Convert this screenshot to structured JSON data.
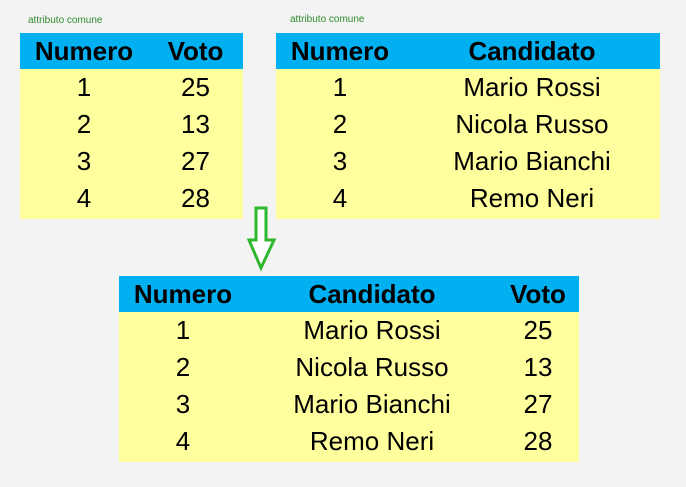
{
  "notes": {
    "left": "attributo comune",
    "right": "attributo comune"
  },
  "table_voti": {
    "headers": [
      "Numero",
      "Voto"
    ],
    "rows": [
      [
        "1",
        "25"
      ],
      [
        "2",
        "13"
      ],
      [
        "3",
        "27"
      ],
      [
        "4",
        "28"
      ]
    ]
  },
  "table_candidati": {
    "headers": [
      "Numero",
      "Candidato"
    ],
    "rows": [
      [
        "1",
        "Mario Rossi"
      ],
      [
        "2",
        "Nicola Russo"
      ],
      [
        "3",
        "Mario Bianchi"
      ],
      [
        "4",
        "Remo Neri"
      ]
    ]
  },
  "table_join": {
    "headers": [
      "Numero",
      "Candidato",
      "Voto"
    ],
    "rows": [
      [
        "1",
        "Mario Rossi",
        "25"
      ],
      [
        "2",
        "Nicola Russo",
        "13"
      ],
      [
        "3",
        "Mario Bianchi",
        "27"
      ],
      [
        "4",
        "Remo Neri",
        "28"
      ]
    ]
  },
  "colors": {
    "header": "#00b0f0",
    "body": "#ffff9e",
    "arrow": "#2eb82e",
    "note": "#2e8b2e"
  },
  "icons": {
    "arrow": "down-arrow-icon"
  }
}
